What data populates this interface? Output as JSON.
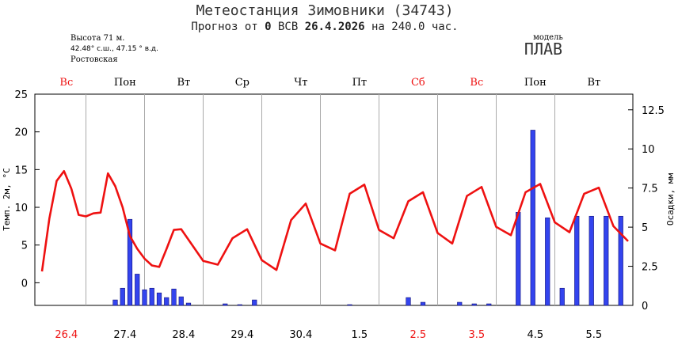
{
  "header": {
    "title": "Метеостанция Зимовники (34743)",
    "subtitle_pre": "Прогноз от ",
    "subtitle_hour": "0",
    "subtitle_mid": " ВСВ ",
    "subtitle_date": "26.4.2026",
    "subtitle_post": " на 240.0 час.",
    "altitude": "Высота 71 м.",
    "coords": "42.48° с.ш., 47.15 ° в.д.",
    "region": "Ростовская",
    "model_label": "модель",
    "model_name": "ПЛАВ"
  },
  "colors": {
    "temperature_line": "#ee1111",
    "precip_bar": "#3344ee",
    "precip_bar_edge": "#11117a",
    "weekend": "#ee1111",
    "weekday": "#000000",
    "grid": "#aaaaaa"
  },
  "chart_data": {
    "type": "line",
    "days": [
      {
        "name": "Вс",
        "date": "26.4",
        "weekend": true
      },
      {
        "name": "Пон",
        "date": "27.4",
        "weekend": false
      },
      {
        "name": "Вт",
        "date": "28.4",
        "weekend": false
      },
      {
        "name": "Ср",
        "date": "29.4",
        "weekend": false
      },
      {
        "name": "Чт",
        "date": "30.4",
        "weekend": false
      },
      {
        "name": "Пт",
        "date": "1.5",
        "weekend": false
      },
      {
        "name": "Сб",
        "date": "2.5",
        "weekend": true
      },
      {
        "name": "Вс",
        "date": "3.5",
        "weekend": true
      },
      {
        "name": "Пон",
        "date": "4.5",
        "weekend": false
      },
      {
        "name": "Вт",
        "date": "5.5",
        "weekend": false
      }
    ],
    "x_unit": "hours from forecast start",
    "xlim": [
      0,
      240
    ],
    "temperature": {
      "ylabel": "Темп. 2м, °C",
      "ylim": [
        -3,
        25
      ],
      "yticks": [
        0,
        5,
        10,
        15,
        20,
        25
      ],
      "x": [
        0,
        3,
        6,
        9,
        12,
        15,
        18,
        21,
        24,
        27,
        30,
        33,
        36,
        39,
        42,
        45,
        48,
        51,
        54,
        57,
        60,
        66,
        72,
        78,
        84,
        90,
        96,
        102,
        108,
        114,
        120,
        126,
        132,
        138,
        144,
        150,
        156,
        162,
        168,
        174,
        180,
        186,
        192,
        198,
        204,
        210,
        216,
        222,
        228,
        234,
        240
      ],
      "values": [
        1.5,
        8.5,
        13.5,
        14.8,
        12.5,
        9,
        8.8,
        9.2,
        9.3,
        14.5,
        12.8,
        10,
        6.2,
        4.5,
        3.2,
        2.3,
        2.1,
        4.5,
        7.0,
        7.1,
        5.7,
        2.9,
        2.4,
        5.9,
        7.1,
        3.0,
        1.7,
        8.3,
        10.5,
        5.2,
        4.3,
        11.8,
        13.0,
        7.0,
        5.9,
        10.8,
        12.0,
        6.6,
        5.2,
        11.5,
        12.7,
        7.4,
        6.3,
        12.0,
        13.1,
        8.0,
        6.7,
        11.8,
        12.6,
        7.5,
        5.5
      ]
    },
    "precipitation": {
      "ylabel": "Осадки, мм",
      "ylim": [
        0,
        13.5
      ],
      "yticks": [
        0,
        2.5,
        5,
        7.5,
        10,
        12.5
      ],
      "x": [
        30,
        33,
        36,
        39,
        42,
        45,
        48,
        51,
        54,
        57,
        60,
        75,
        81,
        87,
        126,
        150,
        156,
        171,
        177,
        183,
        195,
        201,
        207,
        213,
        219,
        225,
        231,
        237
      ],
      "values": [
        0.35,
        1.1,
        5.5,
        2.0,
        1.0,
        1.1,
        0.8,
        0.5,
        1.05,
        0.55,
        0.15,
        0.1,
        0.05,
        0.35,
        0.05,
        0.5,
        0.2,
        0.2,
        0.1,
        0.1,
        5.95,
        11.2,
        5.6,
        1.1,
        5.7,
        5.7,
        5.7,
        5.7
      ]
    }
  }
}
